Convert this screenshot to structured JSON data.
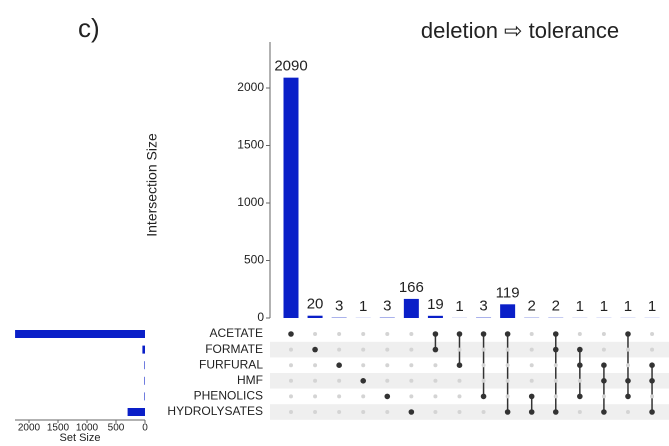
{
  "chart_data": {
    "type": "upset",
    "panel_label": "c)",
    "title": "deletion ⇨ tolerance",
    "ylabel": "Intersection Size",
    "set_size_label": "Set Size",
    "values": [
      2090,
      20,
      3,
      1,
      3,
      166,
      19,
      1,
      3,
      119,
      2,
      2,
      1,
      1,
      1,
      1
    ],
    "color": "#0a1fc8",
    "ylim": [
      0,
      2400
    ],
    "yticks": [
      0,
      500,
      1000,
      1500,
      2000
    ],
    "sets": [
      "ACETATE",
      "FORMATE",
      "FURFURAL",
      "HMF",
      "PHENOLICS",
      "HYDROLYSATES"
    ],
    "set_sizes": [
      2240,
      45,
      10,
      10,
      10,
      300
    ],
    "set_xlim": [
      0,
      2500
    ],
    "set_xticks": [
      2000,
      1500,
      1000,
      500,
      0
    ],
    "membership": [
      [
        1,
        0,
        0,
        0,
        0,
        0
      ],
      [
        0,
        1,
        0,
        0,
        0,
        0
      ],
      [
        0,
        0,
        1,
        0,
        0,
        0
      ],
      [
        0,
        0,
        0,
        1,
        0,
        0
      ],
      [
        0,
        0,
        0,
        0,
        1,
        0
      ],
      [
        0,
        0,
        0,
        0,
        0,
        1
      ],
      [
        1,
        1,
        0,
        0,
        0,
        0
      ],
      [
        1,
        0,
        1,
        0,
        0,
        0
      ],
      [
        1,
        0,
        0,
        0,
        1,
        0
      ],
      [
        1,
        0,
        0,
        0,
        0,
        1
      ],
      [
        0,
        0,
        0,
        0,
        1,
        1
      ],
      [
        1,
        1,
        0,
        0,
        0,
        1
      ],
      [
        0,
        1,
        1,
        0,
        1,
        0
      ],
      [
        0,
        0,
        1,
        1,
        0,
        1
      ],
      [
        1,
        0,
        0,
        1,
        1,
        0
      ],
      [
        0,
        0,
        1,
        1,
        0,
        1
      ]
    ]
  }
}
